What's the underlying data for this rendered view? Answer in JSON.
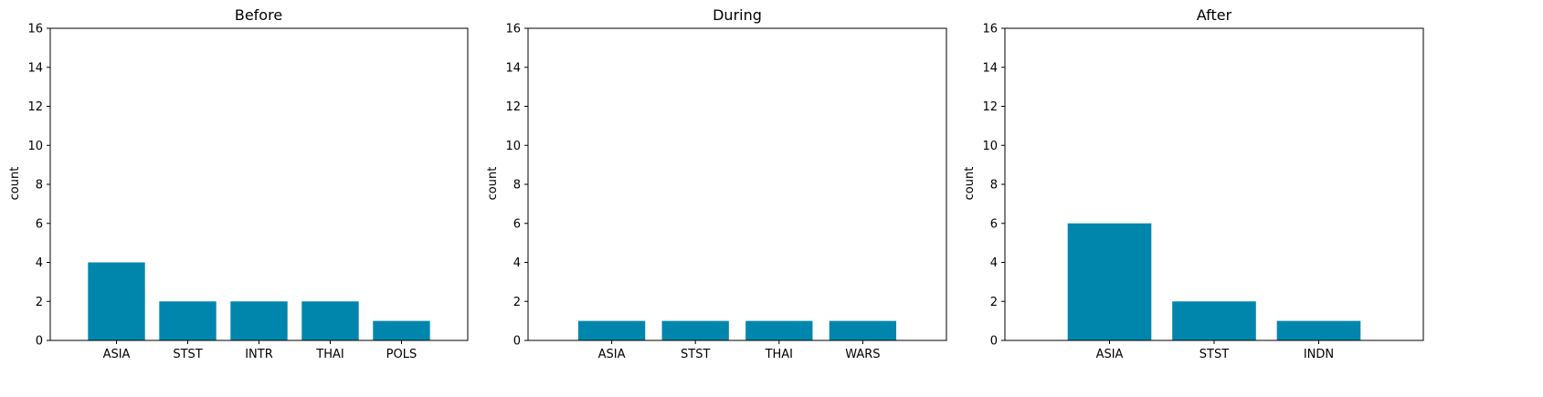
{
  "bar_color": "#0086AD",
  "chart_data": [
    {
      "type": "bar",
      "title": "Before",
      "xlabel": "",
      "ylabel": "count",
      "ylim": [
        0,
        16
      ],
      "yticks": [
        0,
        2,
        4,
        6,
        8,
        10,
        12,
        14,
        16
      ],
      "categories": [
        "ASIA",
        "STST",
        "INTR",
        "THAI",
        "POLS"
      ],
      "values": [
        4,
        2,
        2,
        2,
        1
      ],
      "grid": false
    },
    {
      "type": "bar",
      "title": "During",
      "xlabel": "",
      "ylabel": "count",
      "ylim": [
        0,
        16
      ],
      "yticks": [
        0,
        2,
        4,
        6,
        8,
        10,
        12,
        14,
        16
      ],
      "categories": [
        "ASIA",
        "STST",
        "THAI",
        "WARS"
      ],
      "values": [
        1,
        1,
        1,
        1
      ],
      "grid": false
    },
    {
      "type": "bar",
      "title": "After",
      "xlabel": "",
      "ylabel": "count",
      "ylim": [
        0,
        16
      ],
      "yticks": [
        0,
        2,
        4,
        6,
        8,
        10,
        12,
        14,
        16
      ],
      "categories": [
        "ASIA",
        "STST",
        "INDN"
      ],
      "values": [
        6,
        2,
        1
      ],
      "grid": false
    }
  ]
}
